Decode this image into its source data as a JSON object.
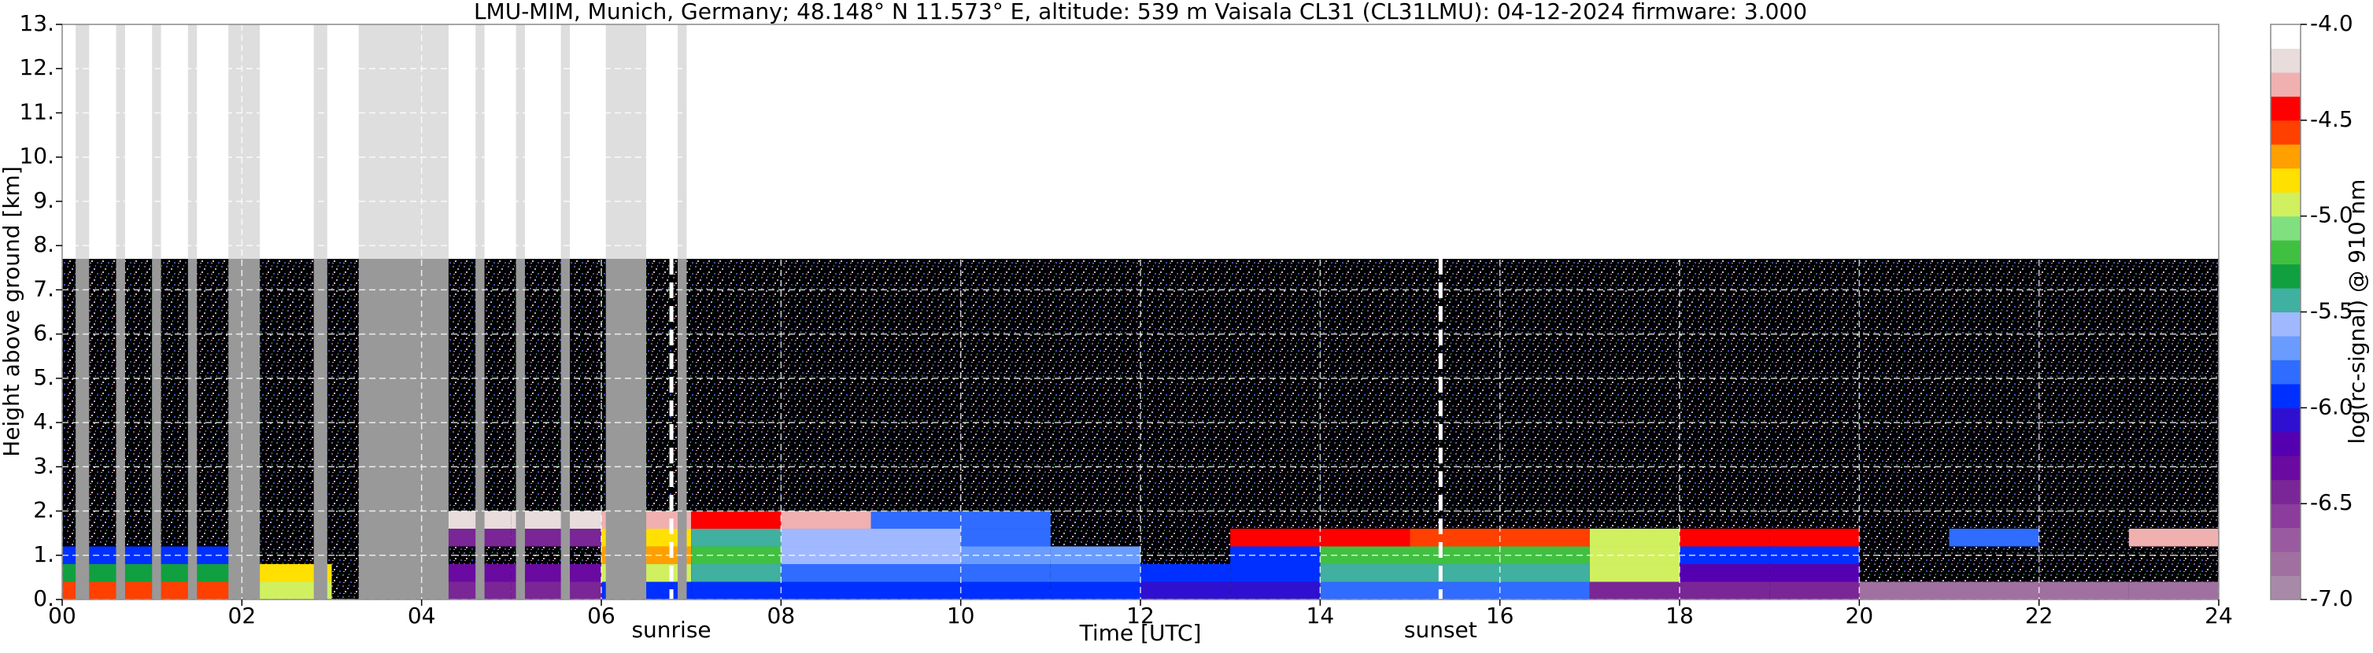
{
  "chart_data": {
    "type": "heatmap",
    "title": "LMU-MIM, Munich, Germany; 48.148° N 11.573° E, altitude: 539 m    Vaisala CL31 (CL31LMU): 04-12-2024    firmware: 3.000",
    "x_label": "Time [UTC]",
    "y_label": "Height above ground [km]",
    "colorbar_label": "log(rc-signal) @ 910 nm",
    "xlim": [
      0,
      24
    ],
    "ylim": [
      0,
      13
    ],
    "xticks": [
      {
        "value": 0,
        "label": "00"
      },
      {
        "value": 2,
        "label": "02"
      },
      {
        "value": 4,
        "label": "04"
      },
      {
        "value": 6,
        "label": "06"
      },
      {
        "value": 8,
        "label": "08"
      },
      10,
      12,
      14,
      16,
      18,
      20,
      22,
      24
    ],
    "yticks": [
      {
        "value": 0,
        "label": "0."
      },
      {
        "value": 1,
        "label": "1."
      },
      {
        "value": 2,
        "label": "2."
      },
      {
        "value": 3,
        "label": "3."
      },
      {
        "value": 4,
        "label": "4."
      },
      {
        "value": 5,
        "label": "5."
      },
      {
        "value": 6,
        "label": "6."
      },
      {
        "value": 7,
        "label": "7."
      },
      {
        "value": 8,
        "label": "8."
      },
      {
        "value": 9,
        "label": "9."
      },
      {
        "value": 10,
        "label": "10."
      },
      {
        "value": 11,
        "label": "11."
      },
      {
        "value": 12,
        "label": "12."
      },
      {
        "value": 13,
        "label": "13."
      }
    ],
    "grid": true,
    "x_bins": [
      0,
      1,
      2,
      3,
      4,
      5,
      6,
      7,
      8,
      9,
      10,
      11,
      12,
      13,
      14,
      15,
      16,
      17,
      18,
      19,
      20,
      21,
      22,
      23,
      24
    ],
    "y_bins": [
      0,
      0.4,
      0.8,
      1.2,
      1.6,
      2.0,
      7.7
    ],
    "z": [
      [
        -4.6,
        -4.6,
        -5.0,
        null,
        -6.5,
        -6.5,
        -6.0,
        -6.0,
        -6.0,
        -6.0,
        -6.0,
        -6.0,
        -6.1,
        -6.1,
        -5.8,
        -5.8,
        -5.8,
        -6.5,
        -6.5,
        -6.5,
        -6.8,
        -6.8,
        -6.8,
        -6.8
      ],
      [
        -5.3,
        -5.3,
        -4.8,
        null,
        -6.3,
        -6.3,
        -5.0,
        -5.5,
        -5.8,
        -5.8,
        -5.8,
        -5.8,
        -6.0,
        -6.0,
        -5.4,
        -5.4,
        -5.4,
        -5.0,
        -6.2,
        -6.2,
        null,
        null,
        null,
        null
      ],
      [
        -6.0,
        -6.0,
        null,
        null,
        null,
        null,
        -4.7,
        -5.2,
        -5.6,
        -5.6,
        -5.7,
        -5.7,
        null,
        -5.9,
        -5.2,
        -5.2,
        -5.2,
        -5.0,
        -5.9,
        -5.9,
        null,
        null,
        null,
        null
      ],
      [
        null,
        null,
        null,
        null,
        -6.4,
        -6.4,
        -4.8,
        -5.4,
        -5.6,
        -5.6,
        -5.8,
        null,
        null,
        -4.4,
        -4.4,
        -4.6,
        -4.6,
        -4.9,
        -4.5,
        -4.5,
        null,
        -5.8,
        null,
        -4.3
      ],
      [
        null,
        null,
        null,
        null,
        -4.2,
        -4.2,
        -4.3,
        -4.5,
        -4.3,
        -5.8,
        -5.8,
        null,
        null,
        null,
        null,
        null,
        null,
        null,
        null,
        null,
        null,
        null,
        null,
        null
      ],
      [
        null,
        null,
        null,
        null,
        null,
        null,
        null,
        null,
        null,
        null,
        null,
        null,
        null,
        null,
        null,
        null,
        null,
        null,
        null,
        null,
        null,
        null,
        null,
        null
      ]
    ],
    "gaps": [
      [
        0.15,
        0.3
      ],
      [
        0.6,
        0.7
      ],
      [
        1.0,
        1.1
      ],
      [
        1.4,
        1.5
      ],
      [
        1.85,
        2.2
      ],
      [
        2.8,
        2.95
      ],
      [
        3.3,
        4.3
      ],
      [
        4.6,
        4.7
      ],
      [
        5.05,
        5.15
      ],
      [
        5.55,
        5.65
      ],
      [
        6.05,
        6.5
      ],
      [
        6.85,
        6.95
      ]
    ],
    "markers": [
      {
        "x": 6.78,
        "label": "sunrise"
      },
      {
        "x": 15.34,
        "label": "sunset"
      }
    ],
    "clim": [
      -7.0,
      -4.0
    ],
    "colorbar_ticks": [
      {
        "value": -7.0,
        "label": "-7.0"
      },
      -6.5,
      {
        "value": -6.0,
        "label": "-6.0"
      },
      -5.5,
      {
        "value": -5.0,
        "label": "-5.0"
      },
      -4.5,
      {
        "value": -4.0,
        "label": "-4.0"
      }
    ],
    "colors": [
      "#a88aa8",
      "#a070a0",
      "#9a5aa0",
      "#8c3c9c",
      "#7a2696",
      "#6a0aa0",
      "#5500b0",
      "#3010d0",
      "#0030ff",
      "#2f6cff",
      "#6a9cff",
      "#a0b8ff",
      "#40b0a0",
      "#10a040",
      "#40c040",
      "#80e080",
      "#d0f060",
      "#ffe000",
      "#ffa000",
      "#ff4000",
      "#ff0000",
      "#f0b0b0",
      "#e8dcdc",
      "#ffffff"
    ],
    "background_color": "#000000",
    "gap_color": "#999999",
    "gap_color_upper": "#dedede"
  }
}
